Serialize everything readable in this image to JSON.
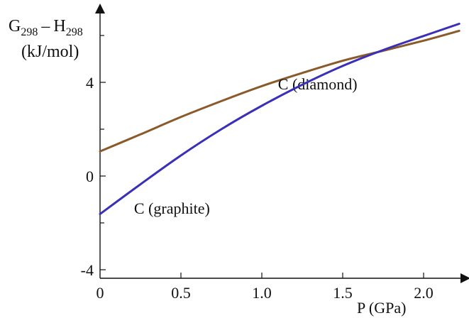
{
  "chart_data": {
    "type": "line",
    "title": "",
    "ylabel": {
      "main_g": "G",
      "sub_g": "298",
      "dash": "–",
      "main_h": "H",
      "sub_h": "298",
      "units": "(kJ/mol)"
    },
    "xlabel": "P (GPa)",
    "xlim": [
      0,
      2.25
    ],
    "ylim": [
      -4.4,
      7.1
    ],
    "x_ticks": [
      {
        "value": 0,
        "label": "0"
      },
      {
        "value": 0.5,
        "label": "0.5"
      },
      {
        "value": 1.0,
        "label": "1.0"
      },
      {
        "value": 1.5,
        "label": "1.5"
      },
      {
        "value": 2.0,
        "label": "2.0"
      }
    ],
    "y_ticks_labeled": [
      {
        "value": 4,
        "label": "4"
      },
      {
        "value": 0,
        "label": "0"
      },
      {
        "value": -4,
        "label": "-4"
      }
    ],
    "y_ticks_minor": [
      -2,
      2,
      6
    ],
    "series": [
      {
        "name": "C (diamond)",
        "color": "#8b5a2b",
        "label_at": [
          1.1,
          3.7
        ],
        "x": [
          0,
          0.25,
          0.5,
          0.75,
          1.0,
          1.25,
          1.5,
          1.75,
          2.0,
          2.22
        ],
        "y": [
          1.05,
          1.78,
          2.52,
          3.2,
          3.84,
          4.4,
          4.92,
          5.35,
          5.78,
          6.2
        ]
      },
      {
        "name": "C (graphite)",
        "color": "#3a2fb8",
        "label_at": [
          0.21,
          -1.6
        ],
        "x": [
          0,
          0.25,
          0.5,
          0.75,
          1.0,
          1.25,
          1.5,
          1.75,
          2.0,
          2.22
        ],
        "y": [
          -1.62,
          -0.35,
          0.88,
          2.0,
          3.0,
          3.9,
          4.7,
          5.38,
          5.98,
          6.5
        ]
      }
    ]
  }
}
